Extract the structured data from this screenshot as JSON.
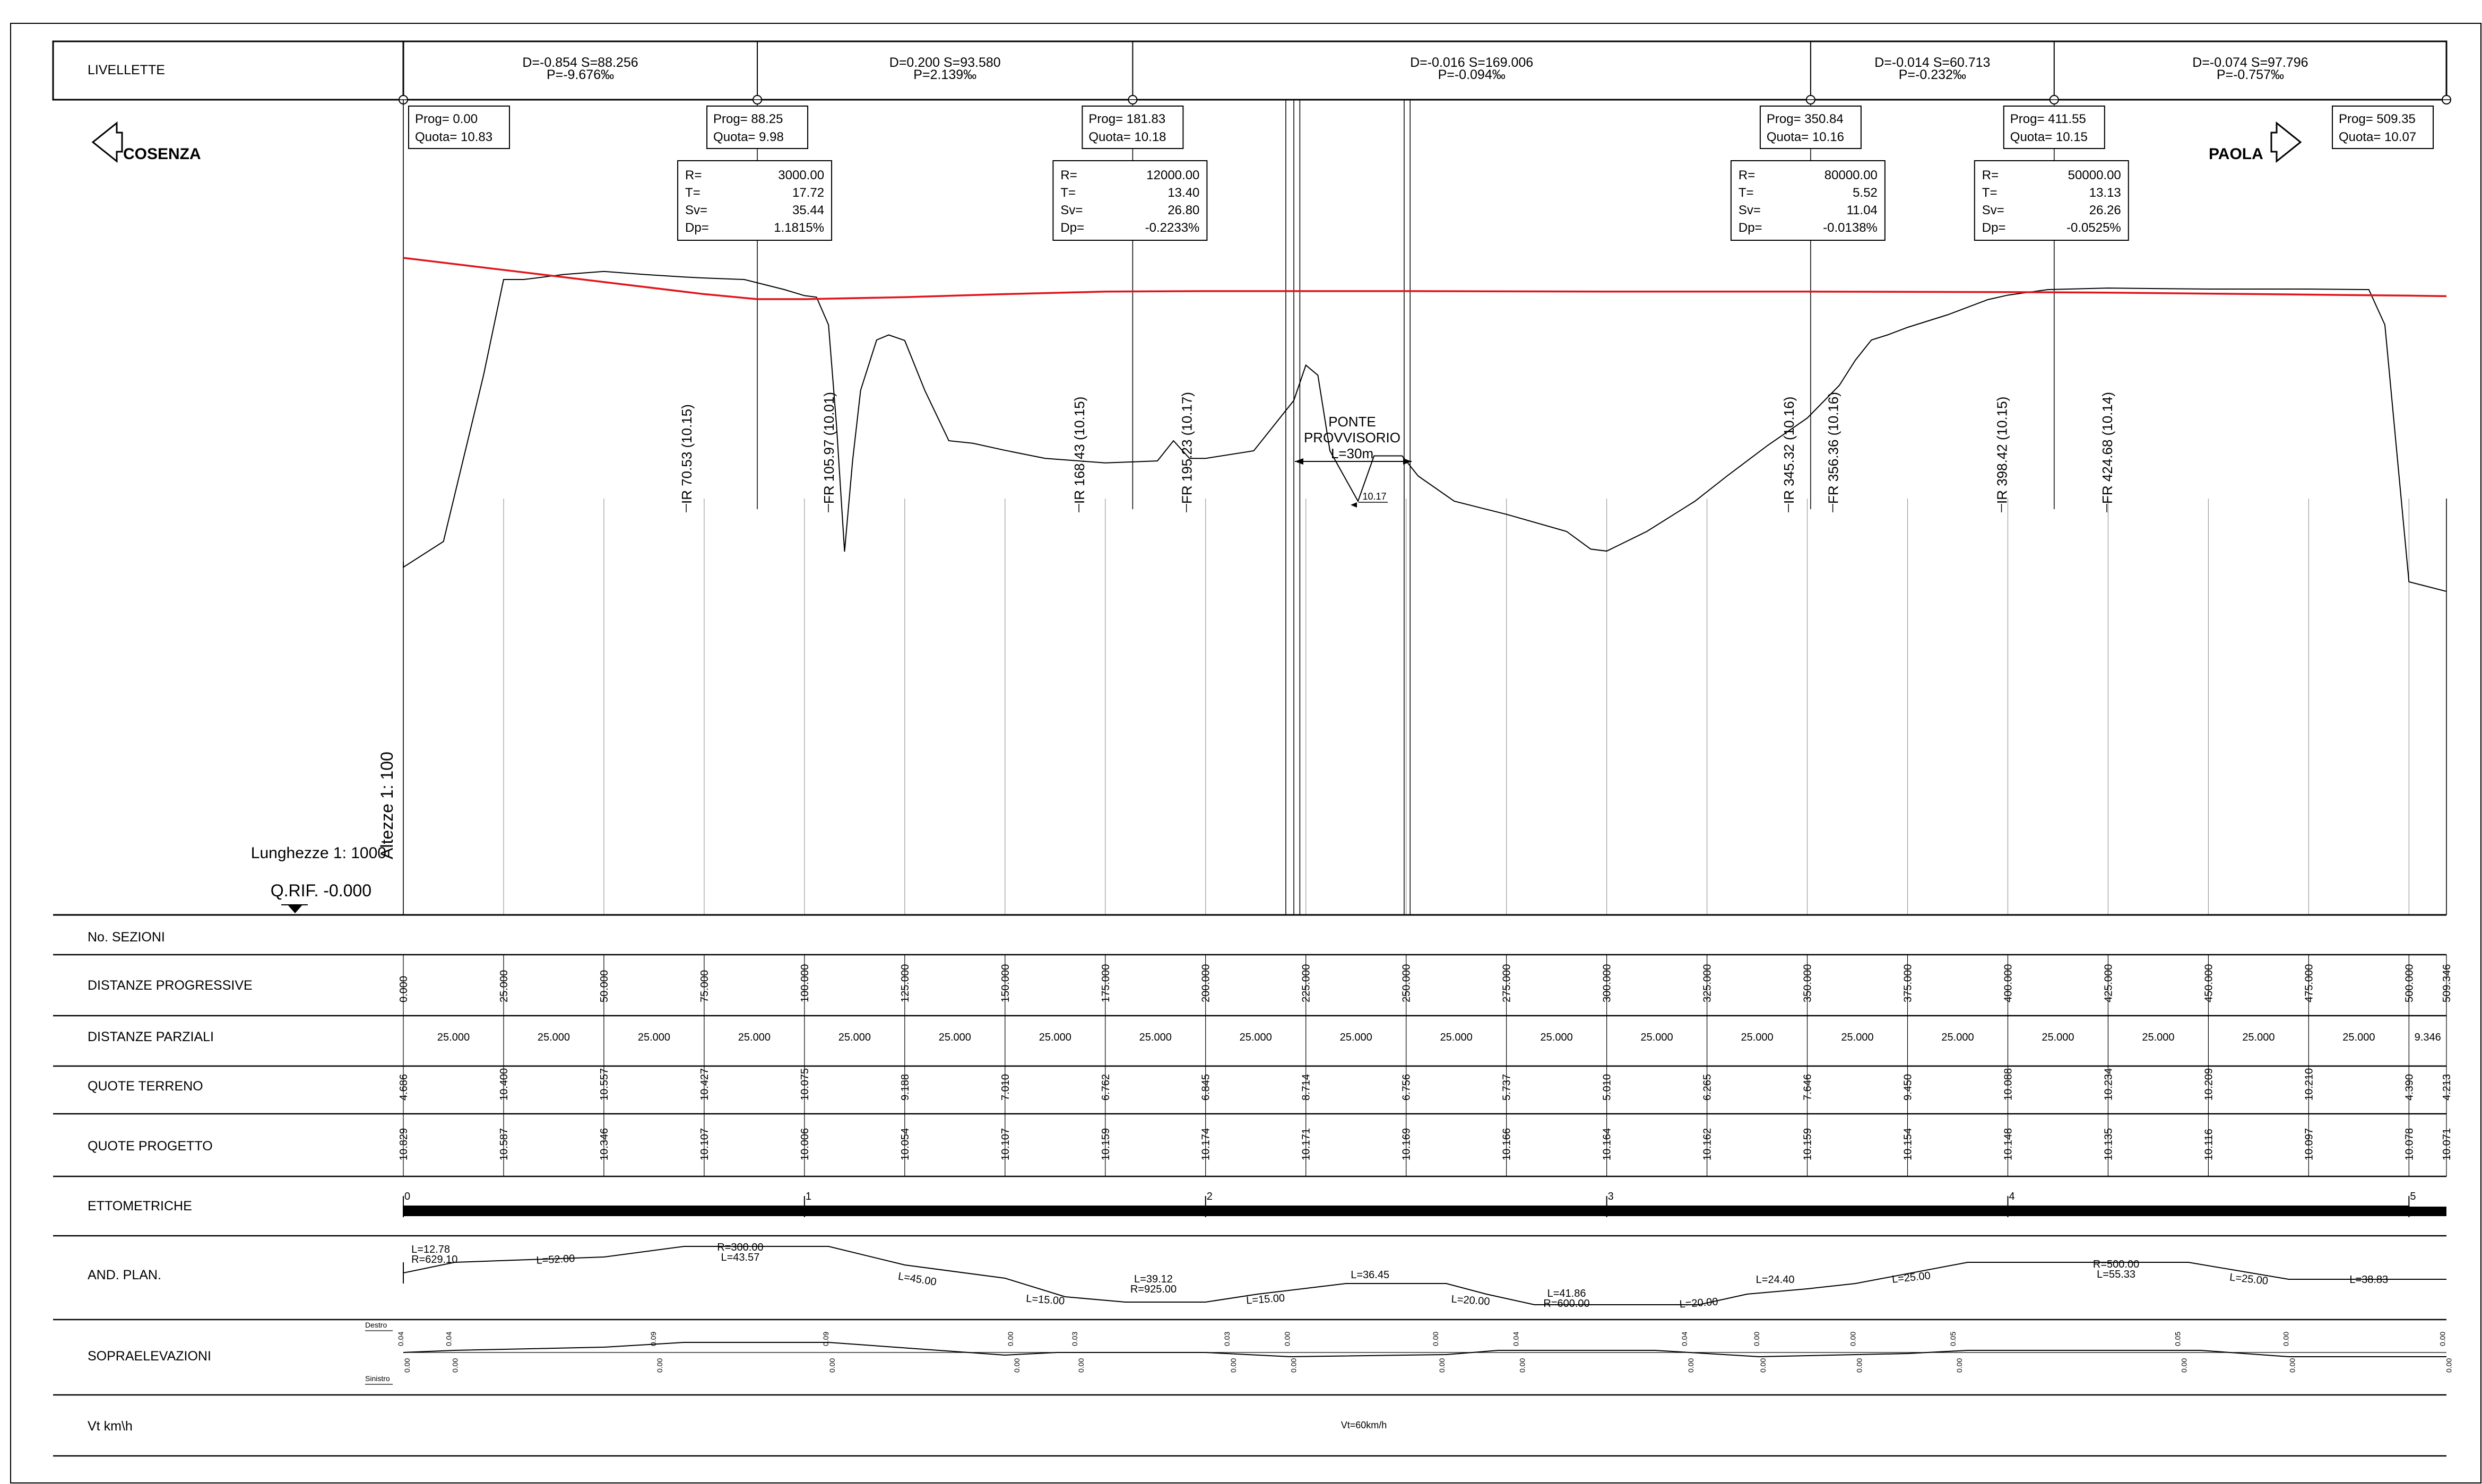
{
  "directions": {
    "left": "COSENZA",
    "right": "PAOLA"
  },
  "scales": {
    "heights": "Altezze 1: 100",
    "lengths": "Lunghezze 1: 1000",
    "reference": "Q.RIF. -0.000"
  },
  "livellette": {
    "label": "LIVELLETTE",
    "segments": [
      {
        "line1": "D=-0.854 S=88.256",
        "line2": "P=-9.676‰"
      },
      {
        "line1": "D=0.200 S=93.580",
        "line2": "P=2.139‰"
      },
      {
        "line1": "D=-0.016 S=169.006",
        "line2": "P=-0.094‰"
      },
      {
        "line1": "D=-0.014 S=60.713",
        "line2": "P=-0.232‰"
      },
      {
        "line1": "D=-0.074 S=97.796",
        "line2": "P=-0.757‰"
      }
    ]
  },
  "vertices": [
    {
      "prog": "Prog=  0.00",
      "quota": "Quota= 10.83"
    },
    {
      "prog": "Prog=  88.25",
      "quota": "Quota=  9.98"
    },
    {
      "prog": "Prog=  181.83",
      "quota": "Quota=  10.18"
    },
    {
      "prog": "Prog=  350.84",
      "quota": "Quota=  10.16"
    },
    {
      "prog": "Prog=  411.55",
      "quota": "Quota=  10.15"
    },
    {
      "prog": "Prog=  509.35",
      "quota": "Quota=  10.07"
    }
  ],
  "curves": [
    {
      "R": "3000.00",
      "T": "17.72",
      "Sv": "35.44",
      "Dp": "1.1815%"
    },
    {
      "R": "12000.00",
      "T": "13.40",
      "Sv": "26.80",
      "Dp": "-0.2233%"
    },
    {
      "R": "80000.00",
      "T": "5.52",
      "Sv": "11.04",
      "Dp": "-0.0138%"
    },
    {
      "R": "50000.00",
      "T": "13.13",
      "Sv": "26.26",
      "Dp": "-0.0525%"
    }
  ],
  "curve_keys": {
    "R": "R=",
    "T": "T=",
    "Sv": "Sv=",
    "Dp": "Dp="
  },
  "markers": [
    "IR  70.53  (10.15)",
    "FR  105.97  (10.01)",
    "IR  168.43  (10.15)",
    "FR  195.23  (10.17)",
    "IR  345.32  (10.16)",
    "FR  356.36  (10.16)",
    "IR  398.42  (10.15)",
    "FR  424.68  (10.14)"
  ],
  "bridge": {
    "line1": "PONTE",
    "line2": "PROVVISORIO",
    "line3": "L=30m",
    "level": "10.17"
  },
  "rows": {
    "sezioni": "No. SEZIONI",
    "progressive": "DISTANZE PROGRESSIVE",
    "parziali": "DISTANZE PARZIALI",
    "terreno": "QUOTE TERRENO",
    "progetto": "QUOTE PROGETTO",
    "ettometriche": "ETTOMETRICHE",
    "andplan": "AND. PLAN.",
    "sopra": "SOPRAELEVAZIONI",
    "vt": "Vt km\\h"
  },
  "progressive_values": [
    "0.000",
    "25.000",
    "50.000",
    "75.000",
    "100.000",
    "125.000",
    "150.000",
    "175.000",
    "200.000",
    "225.000",
    "250.000",
    "275.000",
    "300.000",
    "325.000",
    "350.000",
    "375.000",
    "400.000",
    "425.000",
    "450.000",
    "475.000",
    "500.000",
    "509.346"
  ],
  "parziali_values": [
    "25.000",
    "25.000",
    "25.000",
    "25.000",
    "25.000",
    "25.000",
    "25.000",
    "25.000",
    "25.000",
    "25.000",
    "25.000",
    "25.000",
    "25.000",
    "25.000",
    "25.000",
    "25.000",
    "25.000",
    "25.000",
    "25.000",
    "25.000",
    "9.346"
  ],
  "terreno_values": [
    "4.686",
    "10.400",
    "10.557",
    "10.427",
    "10.075",
    "9.188",
    "7.010",
    "6.762",
    "6.845",
    "8.714",
    "6.756",
    "5.737",
    "5.010",
    "6.265",
    "7.646",
    "9.450",
    "10.088",
    "10.234",
    "10.209",
    "10.210",
    "4.390",
    "4.213"
  ],
  "progetto_values": [
    "10.829",
    "10.587",
    "10.346",
    "10.107",
    "10.006",
    "10.054",
    "10.107",
    "10.159",
    "10.174",
    "10.171",
    "10.169",
    "10.166",
    "10.164",
    "10.162",
    "10.159",
    "10.154",
    "10.148",
    "10.135",
    "10.116",
    "10.097",
    "10.078",
    "10.071"
  ],
  "ettometriche_values": [
    "0",
    "1",
    "2",
    "3",
    "4",
    "5"
  ],
  "andplan_labels": [
    [
      "L=12.78",
      "R=629.10"
    ],
    [
      "L=52.00"
    ],
    [
      "R=300.00",
      "L=43.57"
    ],
    [
      "L=45.00"
    ],
    [
      "L=15.00"
    ],
    [
      "L=39.12",
      "R=925.00"
    ],
    [
      "L=15.00"
    ],
    [
      "L=36.45"
    ],
    [
      "L=20.00"
    ],
    [
      "L=41.86",
      "R=600.00"
    ],
    [
      "L=20.00"
    ],
    [
      "L=24.40"
    ],
    [
      "L=25.00"
    ],
    [
      "R=500.00",
      "L=55.33"
    ],
    [
      "L=25.00"
    ],
    [
      "L=38.83"
    ]
  ],
  "sopra_sides": {
    "top": "Destro",
    "bottom": "Sinistro"
  },
  "sopra_values": {
    "top": [
      "0.04",
      "0.04",
      "0.09",
      "0.09",
      "0.00",
      "0.03",
      "0.03",
      "0.00",
      "0.00",
      "0.04",
      "0.04",
      "0.00",
      "0.00",
      "0.05",
      "0.05",
      "0.00",
      "0.00"
    ],
    "bottom": [
      "0.00",
      "0.00",
      "0.00",
      "0.00",
      "0.00",
      "0.00",
      "0.00",
      "0.00",
      "0.00",
      "0.00",
      "0.00",
      "0.00",
      "0.00",
      "0.00",
      "0.00",
      "0.00",
      "0.00"
    ]
  },
  "vt_value": "Vt=60km/h",
  "profile_terrain": [
    [
      -3,
      4.8
    ],
    [
      0,
      4.69
    ],
    [
      10,
      5.2
    ],
    [
      20,
      8.5
    ],
    [
      25,
      10.4
    ],
    [
      30,
      10.4
    ],
    [
      40,
      10.5
    ],
    [
      50,
      10.56
    ],
    [
      60,
      10.5
    ],
    [
      70,
      10.45
    ],
    [
      75,
      10.43
    ],
    [
      85,
      10.4
    ],
    [
      95,
      10.2
    ],
    [
      100,
      10.08
    ],
    [
      103,
      10.05
    ],
    [
      106,
      9.5
    ],
    [
      108,
      7.5
    ],
    [
      110,
      5.0
    ],
    [
      112,
      6.8
    ],
    [
      114,
      8.2
    ],
    [
      118,
      9.2
    ],
    [
      121,
      9.3
    ],
    [
      125,
      9.19
    ],
    [
      130,
      8.2
    ],
    [
      136,
      7.2
    ],
    [
      142,
      7.15
    ],
    [
      150,
      7.01
    ],
    [
      160,
      6.85
    ],
    [
      175,
      6.76
    ],
    [
      188,
      6.8
    ],
    [
      192,
      7.2
    ],
    [
      196,
      6.85
    ],
    [
      200,
      6.85
    ],
    [
      212,
      7.0
    ],
    [
      222,
      8.0
    ],
    [
      225,
      8.7
    ],
    [
      228,
      8.5
    ],
    [
      231,
      7.0
    ],
    [
      238,
      6.0
    ],
    [
      242,
      6.9
    ],
    [
      249,
      6.9
    ],
    [
      253,
      6.5
    ],
    [
      262,
      6.0
    ],
    [
      275,
      5.74
    ],
    [
      290,
      5.4
    ],
    [
      296,
      5.05
    ],
    [
      300,
      5.01
    ],
    [
      310,
      5.4
    ],
    [
      322,
      6.0
    ],
    [
      330,
      6.5
    ],
    [
      340,
      7.1
    ],
    [
      350,
      7.65
    ],
    [
      358,
      8.3
    ],
    [
      362,
      8.8
    ],
    [
      366,
      9.2
    ],
    [
      370,
      9.3
    ],
    [
      375,
      9.45
    ],
    [
      385,
      9.7
    ],
    [
      395,
      10.0
    ],
    [
      400,
      10.09
    ],
    [
      410,
      10.2
    ],
    [
      425,
      10.23
    ],
    [
      450,
      10.21
    ],
    [
      475,
      10.21
    ],
    [
      490,
      10.2
    ],
    [
      494,
      9.5
    ],
    [
      500,
      4.4
    ],
    [
      509.35,
      4.21
    ]
  ],
  "profile_design": [
    [
      0,
      10.83
    ],
    [
      25,
      10.59
    ],
    [
      50,
      10.35
    ],
    [
      75,
      10.11
    ],
    [
      88.25,
      10.01
    ],
    [
      100,
      10.01
    ],
    [
      125,
      10.05
    ],
    [
      150,
      10.11
    ],
    [
      175,
      10.16
    ],
    [
      200,
      10.17
    ],
    [
      250,
      10.17
    ],
    [
      300,
      10.16
    ],
    [
      350,
      10.16
    ],
    [
      400,
      10.15
    ],
    [
      425,
      10.14
    ],
    [
      450,
      10.12
    ],
    [
      475,
      10.1
    ],
    [
      500,
      10.08
    ],
    [
      509.35,
      10.07
    ]
  ]
}
